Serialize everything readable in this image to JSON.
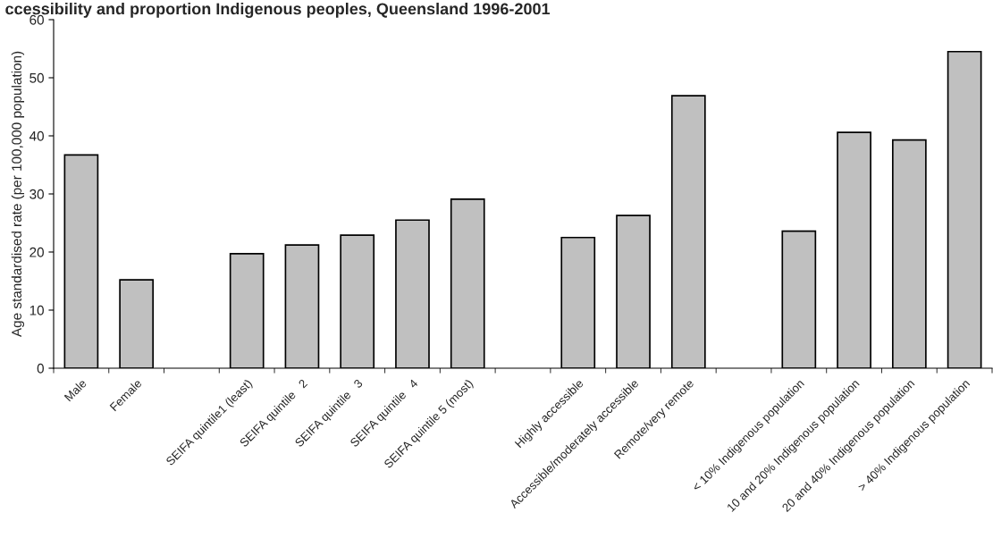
{
  "chart_data": {
    "type": "bar",
    "title": "ccessibility and proportion Indigenous peoples, Queensland 1996-2001",
    "ylabel": "Age standardised rate (per 100,000 population)",
    "categories": [
      "Male",
      "Female",
      null,
      "SEIFA quintile1 (least)",
      "SEIFA quintile   2",
      "SEIFA quintile   3",
      "SEIFA quintile   4",
      "SEIFA quintile 5 (most)",
      null,
      "Highly accessible",
      "Accessible/moderately accessible",
      "Remote/very remote",
      null,
      "< 10% Indigenous population",
      "10 and 20% Indigenous population",
      "20 and 40% Indigenous population",
      "> 40% Indigenous population"
    ],
    "values": [
      36.7,
      15.2,
      null,
      19.7,
      21.2,
      22.9,
      25.5,
      29.1,
      null,
      22.5,
      26.3,
      46.9,
      null,
      23.6,
      40.6,
      39.3,
      54.5
    ],
    "color": "#c0c0c0",
    "ylim": [
      0,
      60
    ],
    "yticks": [
      0,
      10,
      20,
      30,
      40,
      50,
      60
    ],
    "grid": false,
    "legend": false
  }
}
